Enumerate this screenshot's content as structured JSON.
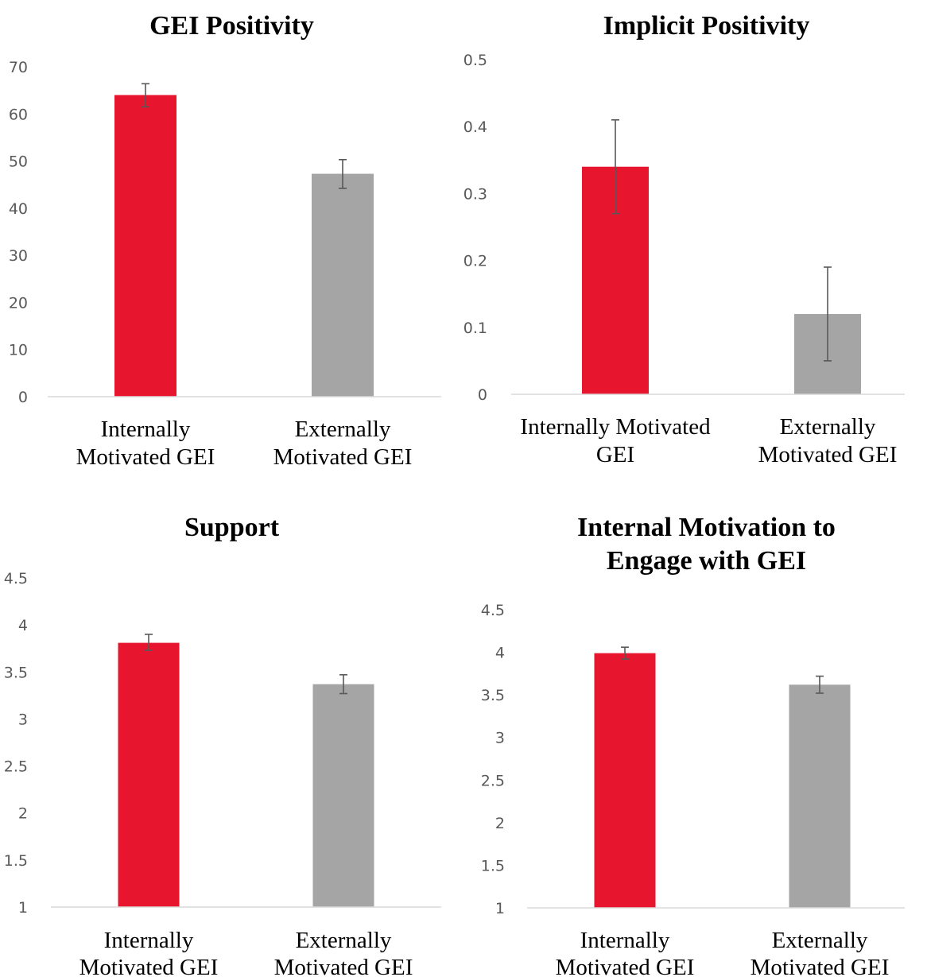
{
  "colors": {
    "internal": "#e8152e",
    "external": "#a5a5a5",
    "axis": "#d9d9d9",
    "error_bar": "#595959"
  },
  "chart_data": [
    {
      "type": "bar",
      "title": [
        "GEI Positivity"
      ],
      "categories": [
        [
          "Internally",
          "Motivated GEI"
        ],
        [
          "Externally",
          "Motivated GEI"
        ]
      ],
      "values": [
        64,
        47.3
      ],
      "error": [
        [
          61.5,
          66.4
        ],
        [
          44.2,
          50.3
        ]
      ],
      "yticks": [
        "0",
        "10",
        "20",
        "30",
        "40",
        "50",
        "60",
        "70"
      ],
      "ylim": [
        0,
        70
      ],
      "grid": false
    },
    {
      "type": "bar",
      "title": [
        "Implicit Positivity"
      ],
      "categories": [
        [
          "Internally Motivated",
          "GEI"
        ],
        [
          "Externally",
          "Motivated GEI"
        ]
      ],
      "values": [
        0.34,
        0.12
      ],
      "error": [
        [
          0.27,
          0.41
        ],
        [
          0.05,
          0.19
        ]
      ],
      "yticks": [
        "0",
        "0.1",
        "0.2",
        "0.3",
        "0.4",
        "0.5"
      ],
      "ylim": [
        0,
        0.5
      ],
      "grid": false
    },
    {
      "type": "bar",
      "title": [
        "Support"
      ],
      "categories": [
        [
          "Internally",
          "Motivated GEI"
        ],
        [
          "Externally",
          "Motivated GEI"
        ]
      ],
      "values": [
        3.81,
        3.37
      ],
      "error": [
        [
          3.73,
          3.9
        ],
        [
          3.27,
          3.47
        ]
      ],
      "yticks": [
        "1",
        "1.5",
        "2",
        "2.5",
        "3",
        "3.5",
        "4",
        "4.5"
      ],
      "ylim": [
        1,
        4.5
      ],
      "grid": false
    },
    {
      "type": "bar",
      "title": [
        "Internal Motivation to",
        "Engage with GEI"
      ],
      "categories": [
        [
          "Internally",
          "Motivated GEI"
        ],
        [
          "Externally",
          "Motivated GEI"
        ]
      ],
      "values": [
        3.99,
        3.62
      ],
      "error": [
        [
          3.92,
          4.06
        ],
        [
          3.52,
          3.72
        ]
      ],
      "yticks": [
        "1",
        "1.5",
        "2",
        "2.5",
        "3",
        "3.5",
        "4",
        "4.5"
      ],
      "ylim": [
        1,
        4.5
      ],
      "grid": false
    }
  ]
}
